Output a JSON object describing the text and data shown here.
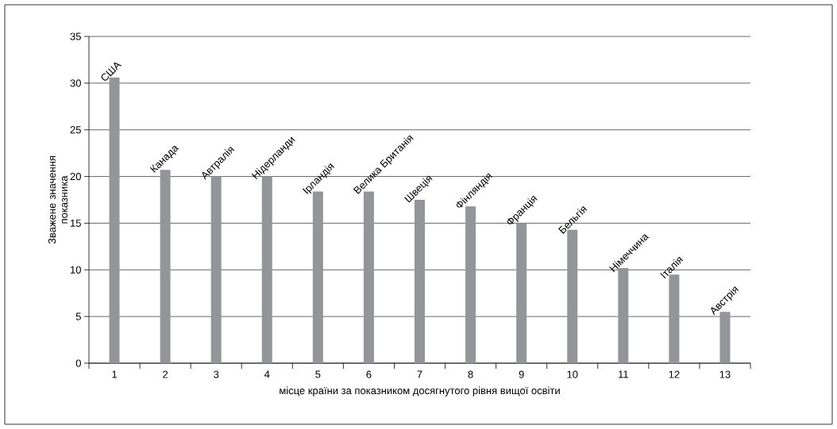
{
  "chart_data": {
    "type": "bar",
    "xlabel": "місце країни за показником досягнутого рівня вищої освіти",
    "ylabel": "Зважене значення показника",
    "categories": [
      "1",
      "2",
      "3",
      "4",
      "5",
      "6",
      "7",
      "8",
      "9",
      "10",
      "11",
      "12",
      "13"
    ],
    "values": [
      30.6,
      20.7,
      20.0,
      20.0,
      18.4,
      18.4,
      17.5,
      16.8,
      15.0,
      14.3,
      10.2,
      9.5,
      5.5
    ],
    "color": "#939598",
    "ylim": [
      0,
      35
    ],
    "yticks": [
      0,
      5,
      10,
      15,
      20,
      25,
      30,
      35
    ],
    "grid": "y",
    "annotations": [
      {
        "text": "США",
        "x": "1",
        "y": 30.6
      },
      {
        "text": "Канада",
        "x": "2",
        "y": 20.7
      },
      {
        "text": "Автралія",
        "x": "3",
        "y": 20.0
      },
      {
        "text": "Нідерланди",
        "x": "4",
        "y": 20.0
      },
      {
        "text": "Ірландія",
        "x": "5",
        "y": 18.4
      },
      {
        "text": "Велика Британія",
        "x": "6",
        "y": 18.4
      },
      {
        "text": "Швеція",
        "x": "7",
        "y": 17.5
      },
      {
        "text": "Фінляндія",
        "x": "8",
        "y": 16.8
      },
      {
        "text": "Франція",
        "x": "9",
        "y": 15.0
      },
      {
        "text": "Бельгія",
        "x": "10",
        "y": 14.3
      },
      {
        "text": "Німеччина",
        "x": "11",
        "y": 10.2
      },
      {
        "text": "Італія",
        "x": "12",
        "y": 9.5
      },
      {
        "text": "Австрія",
        "x": "13",
        "y": 5.5
      }
    ]
  }
}
